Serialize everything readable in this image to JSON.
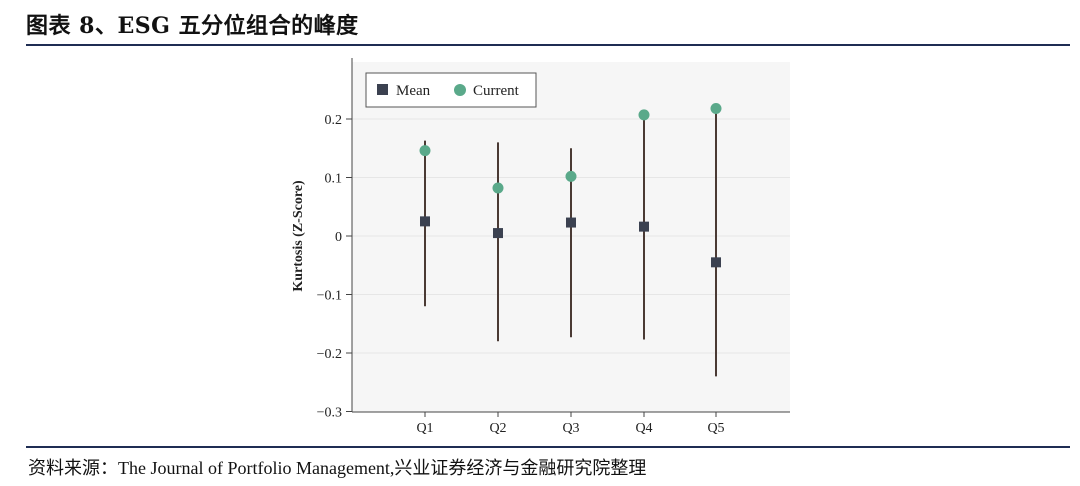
{
  "title": "图表 8、ESG 五分位组合的峰度",
  "source": "资料来源：The Journal of Portfolio Management,兴业证券经济与金融研究院整理",
  "chart_data": {
    "type": "scatter",
    "categories": [
      "Q1",
      "Q2",
      "Q3",
      "Q4",
      "Q5"
    ],
    "series": [
      {
        "name": "Mean",
        "marker": "square",
        "color": "#3b4150",
        "values": [
          0.025,
          0.005,
          0.023,
          0.016,
          -0.045
        ]
      },
      {
        "name": "Current",
        "marker": "circle",
        "color": "#5aa98a",
        "values": [
          0.146,
          0.082,
          0.102,
          0.207,
          0.218
        ]
      }
    ],
    "ranges": [
      {
        "low": -0.12,
        "high": 0.163
      },
      {
        "low": -0.18,
        "high": 0.16
      },
      {
        "low": -0.173,
        "high": 0.15
      },
      {
        "low": -0.177,
        "high": 0.2
      },
      {
        "low": -0.24,
        "high": 0.22
      }
    ],
    "ylabel": "Kurtosis (Z-Score)",
    "yticks": [
      "0.2",
      "0.1",
      "0",
      "−0.1",
      "−0.2",
      "−0.3"
    ],
    "ytick_values": [
      0.2,
      0.1,
      0,
      -0.1,
      -0.2,
      -0.3
    ],
    "ylim": [
      -0.3,
      0.3
    ],
    "grid": true,
    "legend": "top-left",
    "colors": {
      "range_line": "#4a3a34",
      "grid": "#e6e6e6",
      "plot_bg": "#f6f6f6"
    }
  }
}
